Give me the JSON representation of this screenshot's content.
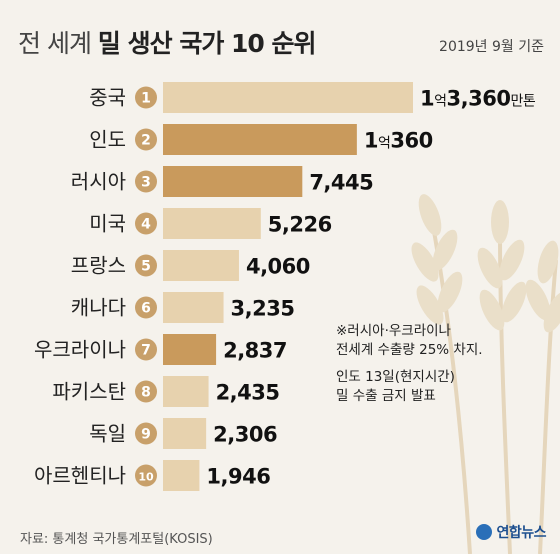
{
  "header": {
    "title_light": "전 세계",
    "title_bold": "밀 생산 국가 10 순위",
    "basis": "2019년 9월 기준"
  },
  "chart_data": {
    "type": "bar",
    "orientation": "horizontal",
    "categories": [
      "중국",
      "인도",
      "러시아",
      "미국",
      "프랑스",
      "캐나다",
      "우크라이나",
      "파키스탄",
      "독일",
      "아르헨티나"
    ],
    "ranks": [
      "1",
      "2",
      "3",
      "4",
      "5",
      "6",
      "7",
      "8",
      "9",
      "10"
    ],
    "values": [
      13360,
      10360,
      7445,
      5226,
      4060,
      3235,
      2837,
      2435,
      2306,
      1946
    ],
    "value_labels": [
      {
        "main": "1",
        "small": "억",
        "rest": "3,360",
        "unit": "만톤"
      },
      {
        "main": "1",
        "small": "억",
        "rest": "360",
        "unit": ""
      },
      {
        "main": "7,445",
        "small": "",
        "rest": "",
        "unit": ""
      },
      {
        "main": "5,226",
        "small": "",
        "rest": "",
        "unit": ""
      },
      {
        "main": "4,060",
        "small": "",
        "rest": "",
        "unit": ""
      },
      {
        "main": "3,235",
        "small": "",
        "rest": "",
        "unit": ""
      },
      {
        "main": "2,837",
        "small": "",
        "rest": "",
        "unit": ""
      },
      {
        "main": "2,435",
        "small": "",
        "rest": "",
        "unit": ""
      },
      {
        "main": "2,306",
        "small": "",
        "rest": "",
        "unit": ""
      },
      {
        "main": "1,946",
        "small": "",
        "rest": "",
        "unit": ""
      }
    ],
    "highlighted": [
      "인도",
      "러시아",
      "우크라이나"
    ],
    "colors": {
      "normal": "#e7d2ae",
      "highlight": "#c99a5c",
      "badge": "#c8a06a"
    }
  },
  "notes": {
    "line1": "※러시아·우크라이나",
    "line2": "전세계 수출량 25% 차지.",
    "line3": "인도 13일(현지시간)",
    "line4": "밀 수출 금지 발표"
  },
  "footer": {
    "source": "자료: 통계청 국가통계포털(KOSIS)",
    "logo": "연합뉴스"
  }
}
